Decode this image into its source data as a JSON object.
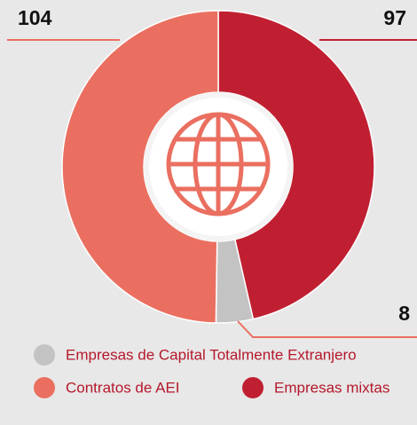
{
  "chart_data": {
    "type": "donut",
    "categories": [
      "Empresas mixtas",
      "Empresas de Capital Totalmente Extranjero",
      "Contratos de AEI"
    ],
    "values": [
      97,
      8,
      104
    ],
    "colors": [
      "#c01f32",
      "#c3c3c3",
      "#ea6f60"
    ]
  }
}
